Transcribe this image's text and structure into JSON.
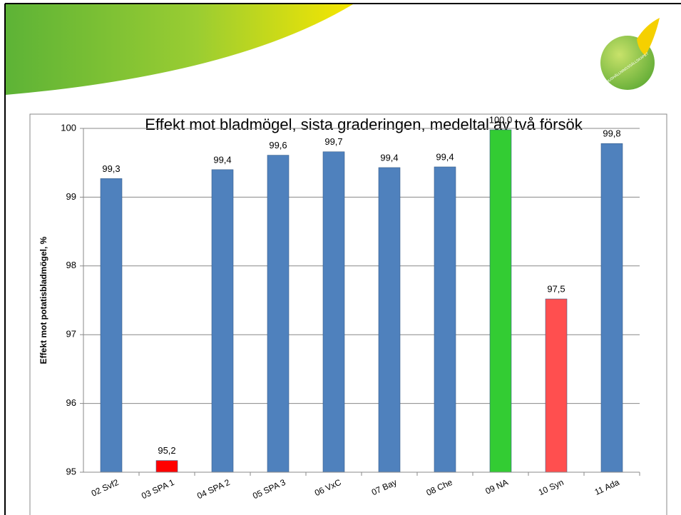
{
  "logo": {
    "text": "HUSHÅLLNINGSSÄLLSKAPET"
  },
  "chart_data": {
    "type": "bar",
    "title": "Effekt mot bladmögel, sista graderingen, medeltal av två försök",
    "y_label": "Effekt mot potatisbladmögel, %",
    "categories": [
      "02 Svf2",
      "03 SPA 1",
      "04 SPA 2",
      "05 SPA 3",
      "06 VxC",
      "07 Bay",
      "08 Che",
      "09 NA",
      "10 Syn",
      "11 Ada"
    ],
    "values": [
      99.27,
      95.17,
      99.4,
      99.61,
      99.66,
      99.43,
      99.44,
      99.98,
      97.52,
      99.78
    ],
    "value_labels": [
      "99,3",
      "95,2",
      "99,4",
      "99,6",
      "99,7",
      "99,4",
      "99,4",
      "100,0",
      "97,5",
      "99,8"
    ],
    "colors": [
      "#4f81bd",
      "#ff0000",
      "#4f81bd",
      "#4f81bd",
      "#4f81bd",
      "#4f81bd",
      "#4f81bd",
      "#33cc33",
      "#ff4f4f",
      "#4f81bd"
    ],
    "ylim": [
      95,
      100
    ],
    "yticks": [
      95,
      96,
      97,
      98,
      99,
      100
    ],
    "grid": true
  }
}
